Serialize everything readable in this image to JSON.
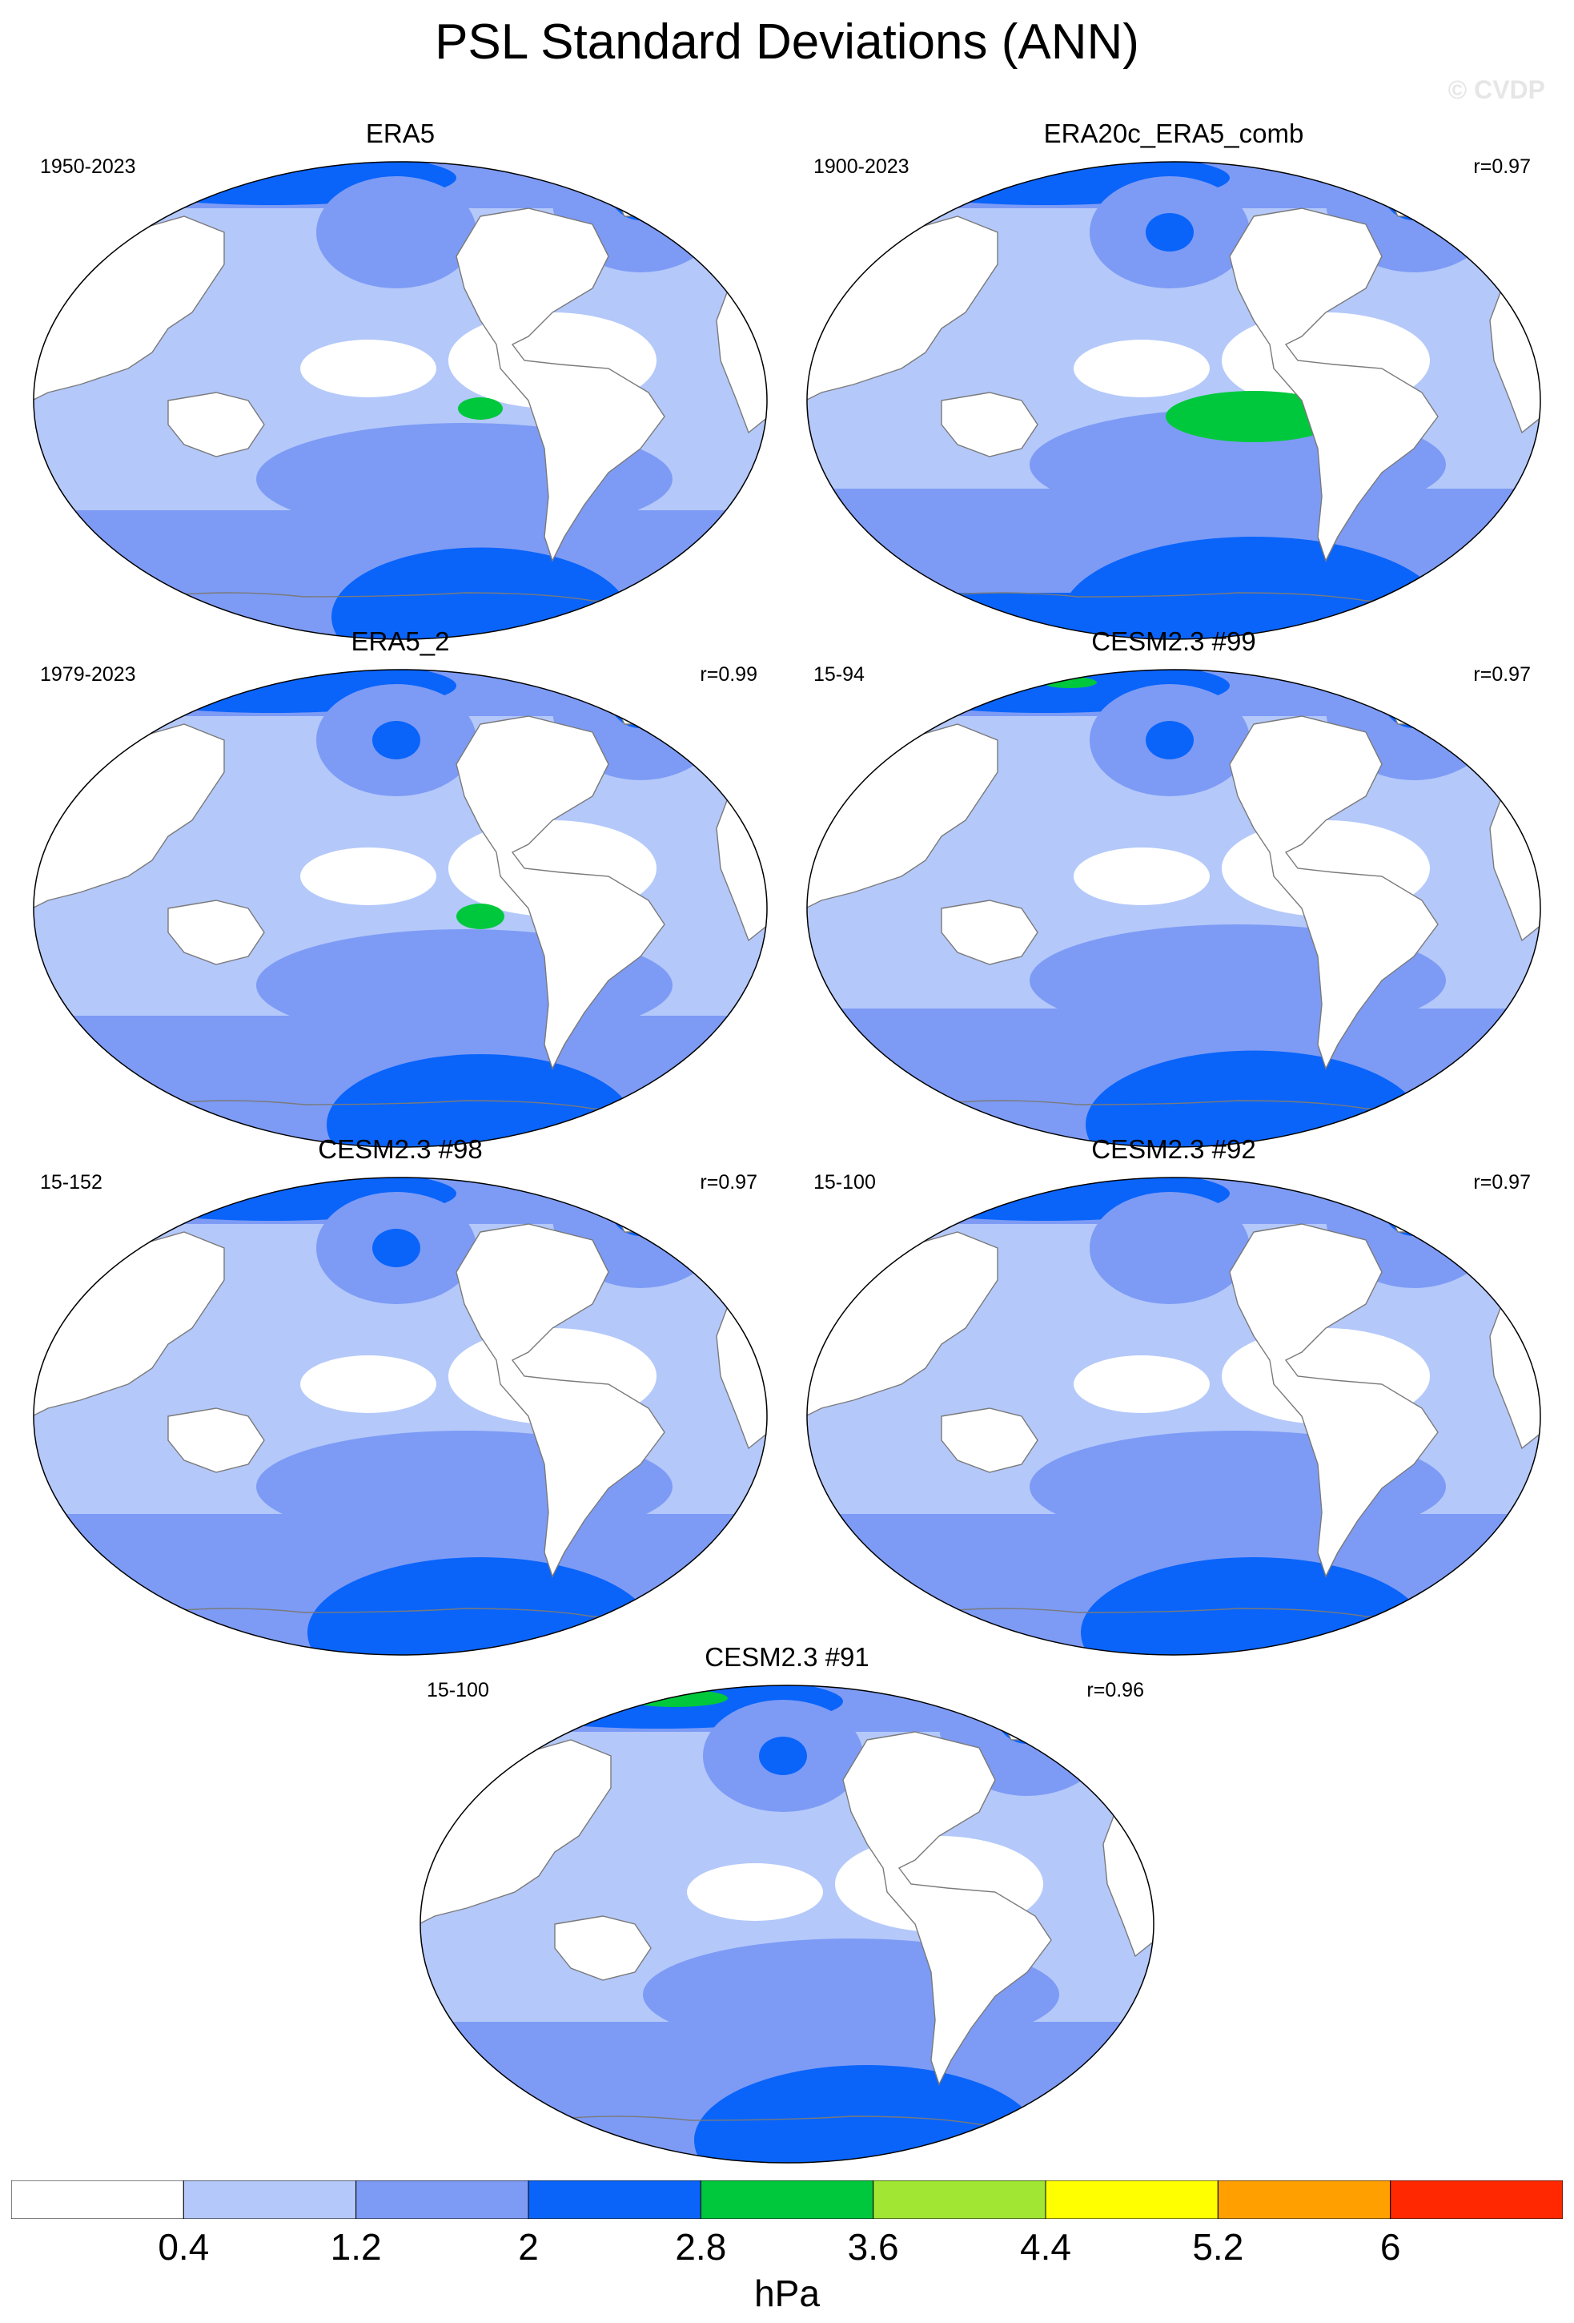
{
  "title": "PSL Standard Deviations (ANN)",
  "watermark": "© CVDP",
  "units": "hPa",
  "colorbar": {
    "colors": [
      "#ffffff",
      "#b4c8fa",
      "#7d9bf5",
      "#0a64fa",
      "#00c83c",
      "#a0e632",
      "#ffff00",
      "#ffa000",
      "#ff2800"
    ],
    "labels": [
      "0.4",
      "1.2",
      "2",
      "2.8",
      "3.6",
      "4.4",
      "5.2",
      "6"
    ]
  },
  "colors": {
    "land": "#ffffff",
    "coast": "#7a7a7a",
    "level1": "#b4c8fa",
    "level2": "#7d9bf5",
    "level3": "#0a64fa",
    "level4": "#00c83c"
  },
  "panels": [
    {
      "title": "ERA5",
      "period": "1950-2023",
      "corr": ""
    },
    {
      "title": "ERA20c_ERA5_comb",
      "period": "1900-2023",
      "corr": "r=0.97"
    },
    {
      "title": "ERA5_2",
      "period": "1979-2023",
      "corr": "r=0.99"
    },
    {
      "title": "CESM2.3 #99",
      "period": "15-94",
      "corr": "r=0.97"
    },
    {
      "title": "CESM2.3 #98",
      "period": "15-152",
      "corr": "r=0.97"
    },
    {
      "title": "CESM2.3 #92",
      "period": "15-100",
      "corr": "r=0.97"
    },
    {
      "title": "CESM2.3 #91",
      "period": "15-100",
      "corr": "r=0.96"
    }
  ]
}
